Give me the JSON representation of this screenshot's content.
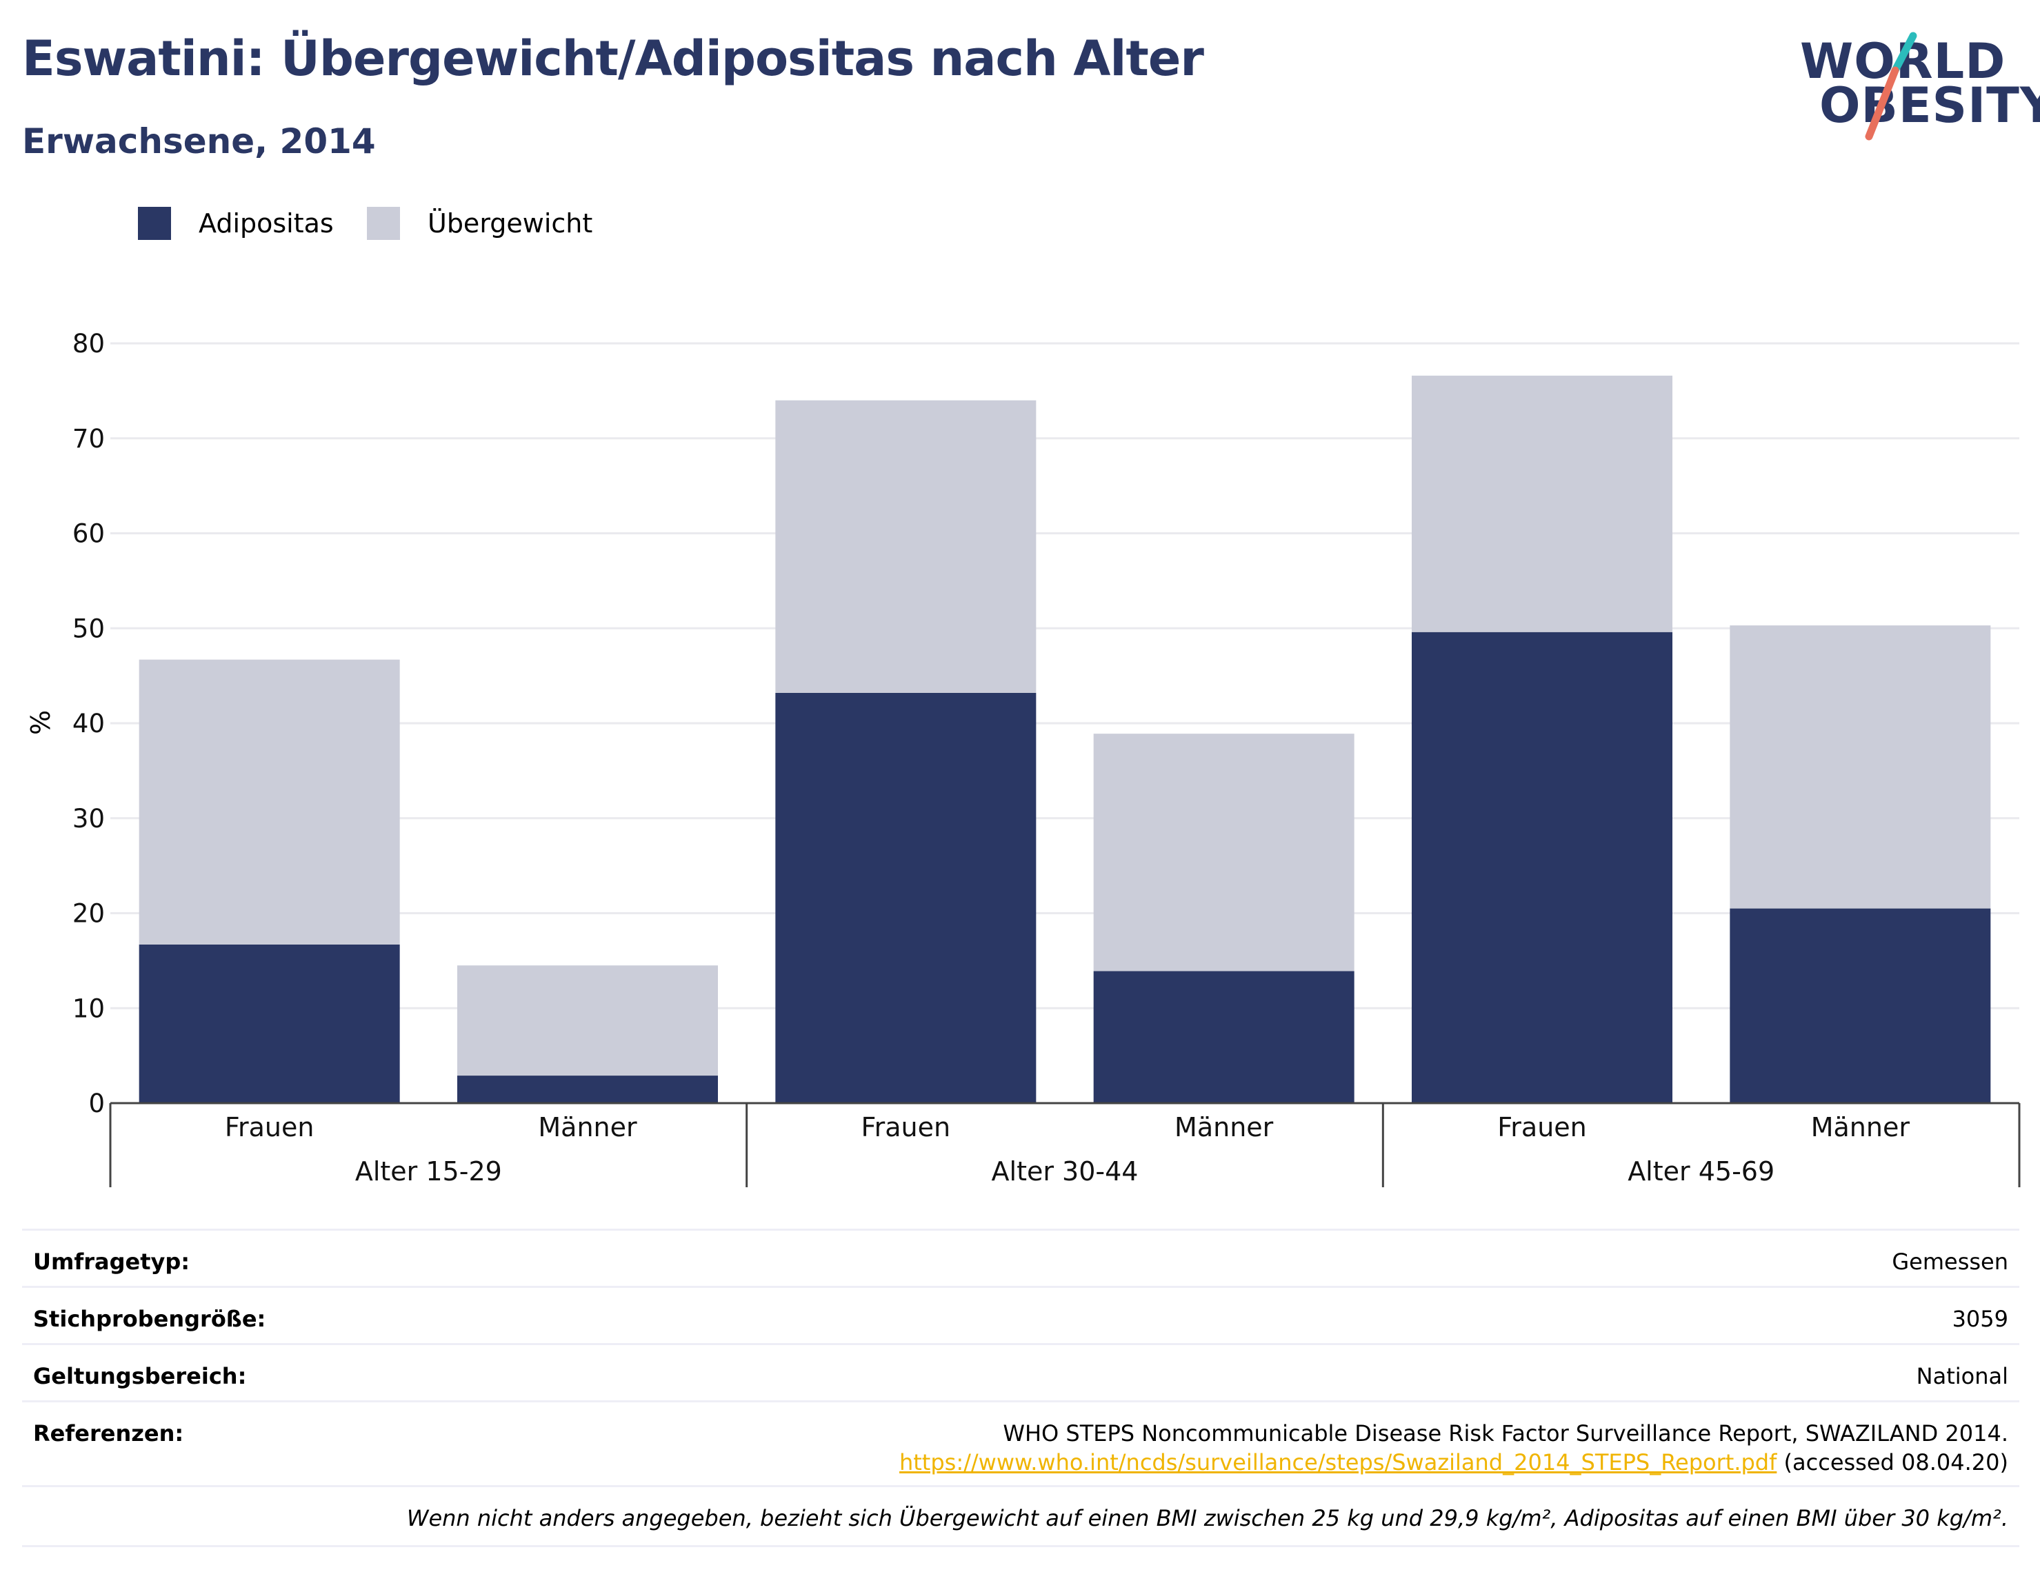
{
  "title": "Eswatini: Übergewicht/Adipositas nach Alter",
  "subtitle": "Erwachsene, 2014",
  "logo": {
    "line1": "WORLD",
    "line2": "OBESITY",
    "accent_top": "#2bbcbc",
    "accent_bottom": "#e8705c"
  },
  "legend": [
    {
      "label": "Adipositas",
      "color": "#2a3764"
    },
    {
      "label": "Übergewicht",
      "color": "#cbcdd9"
    }
  ],
  "chart_data": {
    "type": "bar",
    "stacked": true,
    "groups": [
      "Alter 15-29",
      "Alter 30-44",
      "Alter 45-69"
    ],
    "categories": [
      "Frauen",
      "Männer",
      "Frauen",
      "Männer",
      "Frauen",
      "Männer"
    ],
    "series": [
      {
        "name": "Adipositas",
        "color": "#2a3764",
        "values": [
          16.7,
          2.9,
          43.2,
          13.9,
          49.6,
          20.5
        ]
      },
      {
        "name": "Übergewicht",
        "color": "#cbcdd9",
        "values": [
          30.0,
          11.6,
          30.8,
          25.0,
          27.0,
          29.8
        ]
      }
    ],
    "ylabel": "%",
    "ylim": [
      0,
      80
    ],
    "yticks": [
      0,
      10,
      20,
      30,
      40,
      50,
      60,
      70,
      80
    ],
    "grid": true
  },
  "info": {
    "survey_type_label": "Umfragetyp:",
    "survey_type_value": "Gemessen",
    "sample_size_label": "Stichprobengröße:",
    "sample_size_value": "3059",
    "scope_label": "Geltungsbereich:",
    "scope_value": "National",
    "references_label": "Referenzen:",
    "reference_text": "WHO STEPS Noncommunicable Disease Risk Factor Surveillance Report, SWAZILAND 2014.",
    "reference_url": "https://www.who.int/ncds/surveillance/steps/Swaziland_2014_STEPS_Report.pdf",
    "reference_accessed": "(accessed 08.04.20)",
    "note": "Wenn nicht anders angegeben, bezieht sich Übergewicht auf einen BMI zwischen 25 kg und 29,9 kg/m², Adipositas auf einen BMI über 30 kg/m²."
  }
}
